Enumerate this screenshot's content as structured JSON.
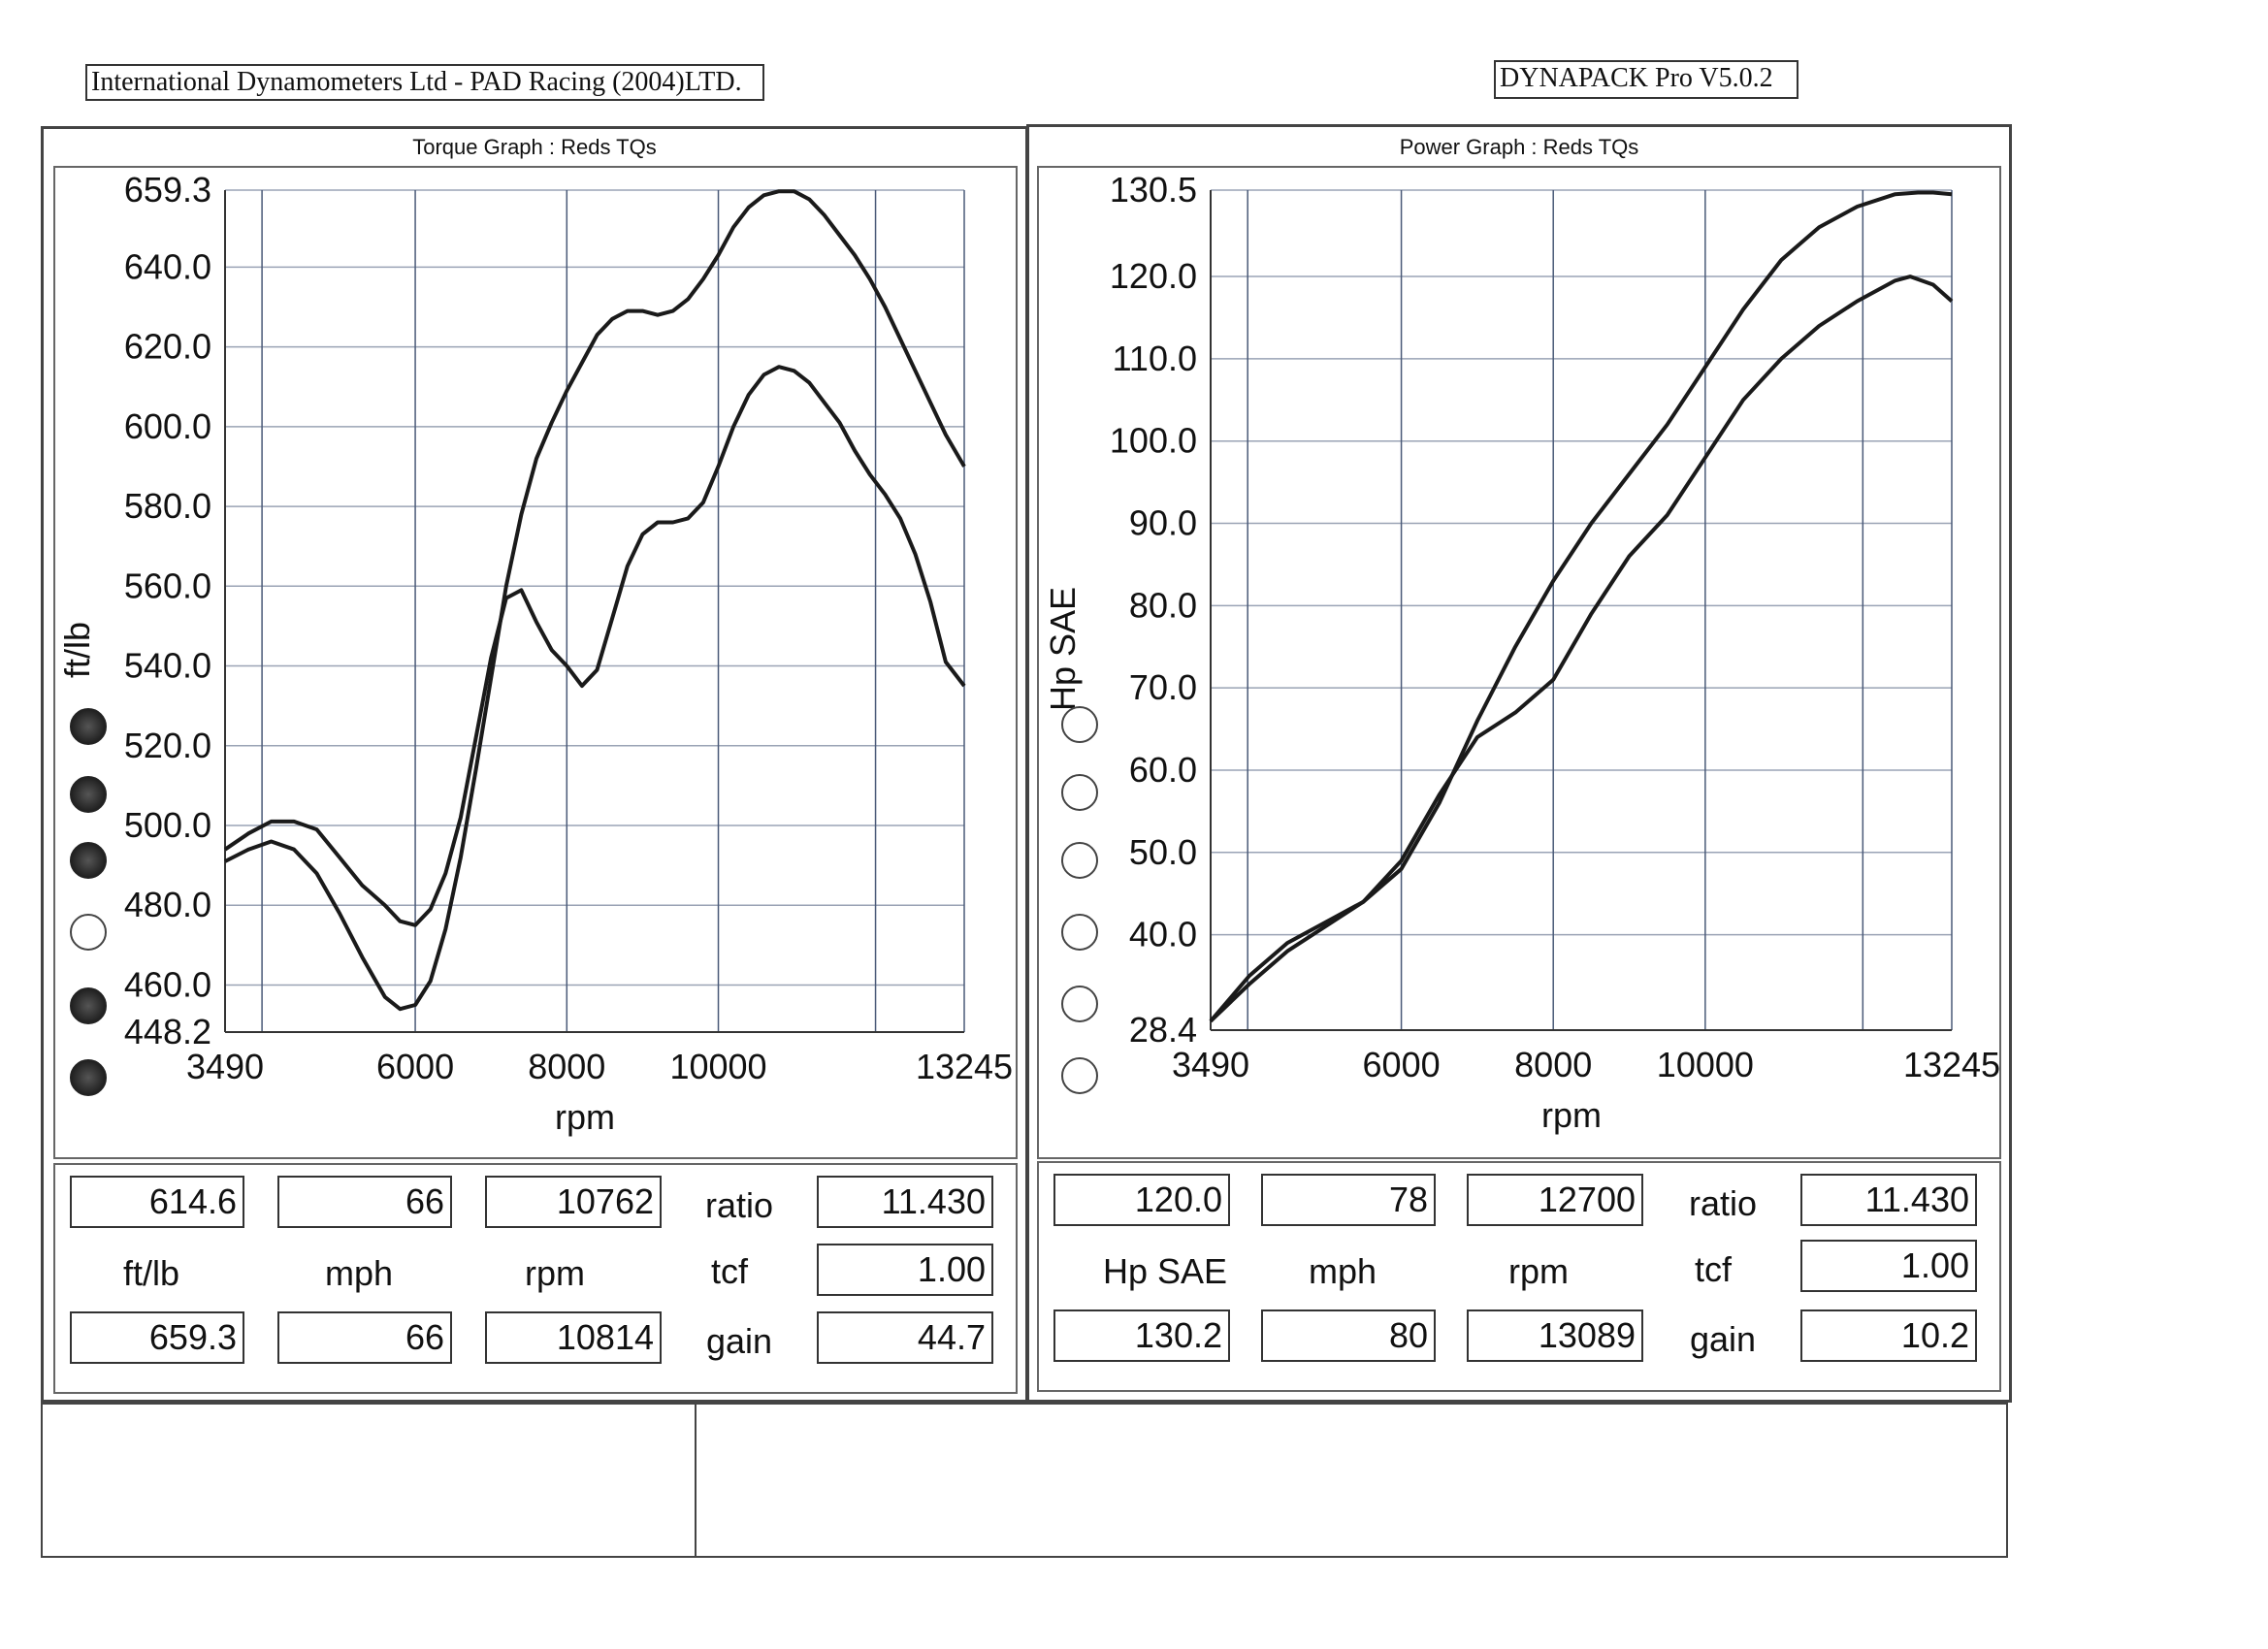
{
  "header": {
    "left": "International Dynamometers Ltd - PAD Racing (2004)LTD.",
    "right": "DYNAPACK Pro V5.0.2"
  },
  "chart_data": [
    {
      "type": "line",
      "title": "Torque Graph : Reds TQs",
      "xlabel": "rpm",
      "ylabel": "ft/lb",
      "xlim": [
        3490,
        13245
      ],
      "ylim": [
        448.2,
        659.3
      ],
      "xticks": [
        "3490",
        "6000",
        "8000",
        "10000",
        "13245"
      ],
      "xtick_values": [
        3490,
        6000,
        8000,
        10000,
        13245
      ],
      "yticks": [
        "659.3",
        "640.0",
        "620.0",
        "600.0",
        "580.0",
        "560.0",
        "540.0",
        "520.0",
        "500.0",
        "480.0",
        "460.0",
        "448.2"
      ],
      "ytick_values": [
        659.3,
        640,
        620,
        600,
        580,
        560,
        540,
        520,
        500,
        480,
        460,
        448.2
      ],
      "grid": true,
      "series": [
        {
          "x": [
            3490,
            3800,
            4100,
            4400,
            4700,
            5000,
            5300,
            5600,
            5800,
            6000,
            6200,
            6400,
            6600,
            6800,
            7000,
            7200,
            7400,
            7600,
            7800,
            8000,
            8200,
            8400,
            8600,
            8800,
            9000,
            9200,
            9400,
            9600,
            9800,
            10000,
            10200,
            10400,
            10600,
            10800,
            11000,
            11200,
            11400,
            11600,
            11800,
            12000,
            12200,
            12400,
            12600,
            12800,
            13000,
            13245
          ],
          "y": [
            491,
            494,
            496,
            494,
            488,
            478,
            467,
            457,
            454,
            455,
            461,
            474,
            492,
            514,
            537,
            560,
            578,
            592,
            601,
            609,
            616,
            623,
            627,
            629,
            629,
            628,
            629,
            632,
            637,
            643,
            650,
            655,
            658,
            659,
            659,
            657,
            653,
            648,
            643,
            637,
            630,
            622,
            614,
            606,
            598,
            590
          ]
        },
        {
          "x": [
            3490,
            3800,
            4100,
            4400,
            4700,
            5000,
            5300,
            5600,
            5800,
            6000,
            6200,
            6400,
            6600,
            6800,
            7000,
            7200,
            7400,
            7600,
            7800,
            8000,
            8200,
            8400,
            8600,
            8800,
            9000,
            9200,
            9400,
            9600,
            9800,
            10000,
            10200,
            10400,
            10600,
            10800,
            11000,
            11200,
            11400,
            11600,
            11800,
            12000,
            12200,
            12400,
            12600,
            12800,
            13000,
            13245
          ],
          "y": [
            494,
            498,
            501,
            501,
            499,
            492,
            485,
            480,
            476,
            475,
            479,
            488,
            502,
            522,
            542,
            557,
            559,
            551,
            544,
            540,
            535,
            539,
            552,
            565,
            573,
            576,
            576,
            577,
            581,
            590,
            600,
            608,
            613,
            615,
            614,
            611,
            606,
            601,
            594,
            588,
            583,
            577,
            568,
            556,
            541,
            535
          ]
        }
      ]
    },
    {
      "type": "line",
      "title": "Power Graph : Reds TQs",
      "xlabel": "rpm",
      "ylabel": "Hp SAE",
      "xlim": [
        3490,
        13245
      ],
      "ylim": [
        28.4,
        130.5
      ],
      "xticks": [
        "3490",
        "6000",
        "8000",
        "10000",
        "13245"
      ],
      "xtick_values": [
        3490,
        6000,
        8000,
        10000,
        13245
      ],
      "yticks": [
        "130.5",
        "120.0",
        "110.0",
        "100.0",
        "90.0",
        "80.0",
        "70.0",
        "60.0",
        "50.0",
        "40.0",
        "28.4"
      ],
      "ytick_values": [
        130.5,
        120,
        110,
        100,
        90,
        80,
        70,
        60,
        50,
        40,
        28.4
      ],
      "grid": true,
      "series": [
        {
          "x": [
            3490,
            4000,
            4500,
            5000,
            5500,
            6000,
            6500,
            7000,
            7500,
            8000,
            8500,
            9000,
            9500,
            10000,
            10500,
            11000,
            11500,
            12000,
            12500,
            12800,
            13000,
            13245
          ],
          "y": [
            29.5,
            34,
            38,
            41,
            44,
            48,
            56,
            66,
            75,
            83,
            90,
            96,
            102,
            109,
            116,
            122,
            126,
            128.5,
            130,
            130.2,
            130.2,
            130
          ]
        },
        {
          "x": [
            3490,
            4000,
            4500,
            5000,
            5500,
            6000,
            6500,
            7000,
            7500,
            8000,
            8500,
            9000,
            9500,
            10000,
            10500,
            11000,
            11500,
            12000,
            12500,
            12700,
            13000,
            13245
          ],
          "y": [
            29.5,
            35,
            39,
            41.5,
            44,
            49,
            57,
            64,
            67,
            71,
            79,
            86,
            91,
            98,
            105,
            110,
            114,
            117,
            119.5,
            120,
            119,
            117
          ]
        }
      ]
    }
  ],
  "torque_panel": {
    "readouts": {
      "row1": [
        "614.6",
        "66",
        "10762"
      ],
      "units": [
        "ft/lb",
        "mph",
        "rpm"
      ],
      "row2": [
        "659.3",
        "66",
        "10814"
      ],
      "labels": [
        "ratio",
        "tcf",
        "gain"
      ],
      "values": [
        "11.430",
        "1.00",
        "44.7"
      ]
    },
    "radio_states": [
      "on",
      "on",
      "on",
      "off",
      "on",
      "on"
    ]
  },
  "power_panel": {
    "readouts": {
      "row1": [
        "120.0",
        "78",
        "12700"
      ],
      "units": [
        "Hp SAE",
        "mph",
        "rpm"
      ],
      "row2": [
        "130.2",
        "80",
        "13089"
      ],
      "labels": [
        "ratio",
        "tcf",
        "gain"
      ],
      "values": [
        "11.430",
        "1.00",
        "10.2"
      ]
    },
    "radio_states": [
      "off",
      "off",
      "off",
      "off",
      "off",
      "off"
    ]
  },
  "colors": {
    "curve": "#1a1a1a",
    "grid_h": "#9aa3b5",
    "grid_v": "#4a5a78",
    "radio_on": "#222222"
  }
}
